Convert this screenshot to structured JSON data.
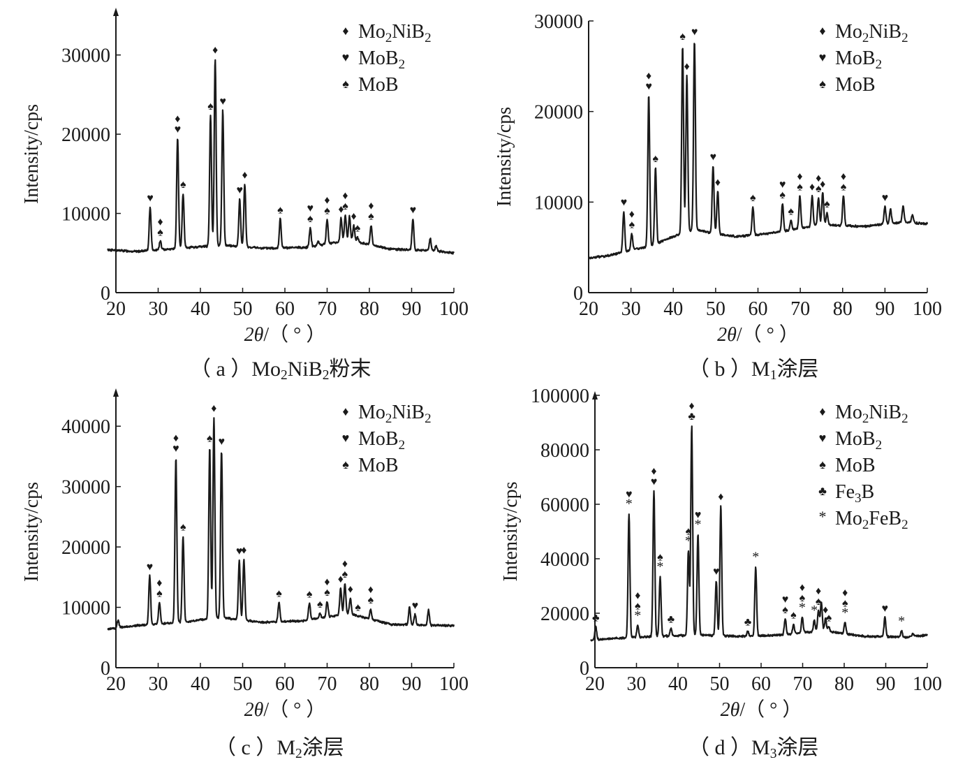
{
  "chart_data": [
    {
      "type": "line",
      "caption": {
        "prefix": "（ a ）",
        "sample": "Mo2NiB2",
        "suffix": "粉末"
      },
      "xlabel": "2θ/（ ° ）",
      "ylabel": "Intensity/cps",
      "xlim": [
        20,
        100
      ],
      "ylim": [
        0,
        35000
      ],
      "xticks": [
        20,
        30,
        40,
        50,
        60,
        70,
        80,
        90,
        100
      ],
      "yticks": [
        0,
        10000,
        20000,
        30000
      ],
      "baseline": [
        [
          18,
          5400
        ],
        [
          25,
          5200
        ],
        [
          35,
          5600
        ],
        [
          45,
          6000
        ],
        [
          55,
          5600
        ],
        [
          65,
          5700
        ],
        [
          75,
          6600
        ],
        [
          85,
          5500
        ],
        [
          95,
          5300
        ],
        [
          100,
          5000
        ]
      ],
      "peaks": [
        {
          "x": 28.1,
          "y": 10800,
          "markers": [
            "heart"
          ]
        },
        {
          "x": 30.5,
          "y": 6500,
          "markers": [
            "diamond",
            "spade"
          ]
        },
        {
          "x": 34.6,
          "y": 19500,
          "markers": [
            "diamond",
            "heart"
          ]
        },
        {
          "x": 35.9,
          "y": 12500,
          "markers": [
            "spade"
          ]
        },
        {
          "x": 42.4,
          "y": 22400,
          "markers": [
            "spade"
          ]
        },
        {
          "x": 43.5,
          "y": 29500,
          "markers": [
            "diamond"
          ]
        },
        {
          "x": 45.3,
          "y": 23000,
          "markers": [
            "heart"
          ]
        },
        {
          "x": 49.3,
          "y": 11800,
          "markers": [
            "heart"
          ]
        },
        {
          "x": 50.5,
          "y": 13700,
          "markers": [
            "diamond"
          ]
        },
        {
          "x": 58.9,
          "y": 9300,
          "markers": [
            "spade"
          ]
        },
        {
          "x": 66.0,
          "y": 8200,
          "markers": [
            "heart",
            "spade"
          ]
        },
        {
          "x": 67.9,
          "y": 6500,
          "markers": []
        },
        {
          "x": 70.0,
          "y": 9200,
          "markers": [
            "diamond",
            "spade"
          ]
        },
        {
          "x": 73.3,
          "y": 9400,
          "markers": [
            "diamond"
          ]
        },
        {
          "x": 74.3,
          "y": 9800,
          "markers": [
            "diamond",
            "spade"
          ]
        },
        {
          "x": 75.3,
          "y": 9600,
          "markers": []
        },
        {
          "x": 76.3,
          "y": 8500,
          "markers": [
            "diamond"
          ]
        },
        {
          "x": 77.2,
          "y": 7000,
          "markers": [
            "spade"
          ]
        },
        {
          "x": 80.4,
          "y": 8500,
          "markers": [
            "diamond",
            "spade"
          ]
        },
        {
          "x": 90.3,
          "y": 9300,
          "markers": [
            "heart"
          ]
        },
        {
          "x": 94.4,
          "y": 6800,
          "markers": []
        },
        {
          "x": 95.8,
          "y": 5900,
          "markers": []
        }
      ],
      "legend": [
        {
          "symbol": "diamond",
          "label": "Mo2NiB2"
        },
        {
          "symbol": "heart",
          "label": "MoB2"
        },
        {
          "symbol": "spade",
          "label": "MoB"
        }
      ],
      "legend_position": "top-right"
    },
    {
      "type": "line",
      "caption": {
        "prefix": "（ b ）",
        "sample": "M1",
        "suffix": "涂层"
      },
      "xlabel": "2θ/（ ° ）",
      "ylabel": "Intensity/cps",
      "xlim": [
        20,
        100
      ],
      "ylim": [
        0,
        30000
      ],
      "xticks": [
        20,
        30,
        40,
        50,
        60,
        70,
        80,
        90,
        100
      ],
      "yticks": [
        0,
        10000,
        20000,
        30000
      ],
      "baseline": [
        [
          20,
          3800
        ],
        [
          25,
          4100
        ],
        [
          30,
          4700
        ],
        [
          35,
          5200
        ],
        [
          40,
          6200
        ],
        [
          45,
          7000
        ],
        [
          50,
          6500
        ],
        [
          55,
          6200
        ],
        [
          60,
          6400
        ],
        [
          65,
          6700
        ],
        [
          70,
          7100
        ],
        [
          75,
          7500
        ],
        [
          80,
          7400
        ],
        [
          85,
          7300
        ],
        [
          90,
          7600
        ],
        [
          95,
          7800
        ],
        [
          100,
          7600
        ]
      ],
      "peaks": [
        {
          "x": 28.3,
          "y": 9000,
          "markers": [
            "heart"
          ]
        },
        {
          "x": 30.2,
          "y": 6500,
          "markers": [
            "diamond",
            "spade"
          ]
        },
        {
          "x": 34.2,
          "y": 21800,
          "markers": [
            "diamond",
            "heart"
          ]
        },
        {
          "x": 35.8,
          "y": 13800,
          "markers": [
            "spade"
          ]
        },
        {
          "x": 42.2,
          "y": 27300,
          "markers": [
            "spade"
          ]
        },
        {
          "x": 43.2,
          "y": 24000,
          "markers": [
            "diamond"
          ]
        },
        {
          "x": 45.0,
          "y": 27800,
          "markers": [
            "heart"
          ]
        },
        {
          "x": 49.4,
          "y": 14000,
          "markers": [
            "heart"
          ]
        },
        {
          "x": 50.5,
          "y": 11200,
          "markers": [
            "diamond"
          ]
        },
        {
          "x": 58.8,
          "y": 9500,
          "markers": [
            "spade"
          ]
        },
        {
          "x": 65.8,
          "y": 9800,
          "markers": [
            "heart",
            "spade"
          ]
        },
        {
          "x": 67.8,
          "y": 8000,
          "markers": [
            "spade"
          ]
        },
        {
          "x": 69.9,
          "y": 10700,
          "markers": [
            "diamond",
            "spade"
          ]
        },
        {
          "x": 72.8,
          "y": 10700,
          "markers": [
            "diamond"
          ]
        },
        {
          "x": 74.3,
          "y": 10500,
          "markers": [
            "diamond",
            "spade"
          ]
        },
        {
          "x": 75.3,
          "y": 11000,
          "markers": [
            "diamond"
          ]
        },
        {
          "x": 76.3,
          "y": 8800,
          "markers": [
            "spade"
          ]
        },
        {
          "x": 80.2,
          "y": 10700,
          "markers": [
            "diamond",
            "spade"
          ]
        },
        {
          "x": 90.0,
          "y": 9500,
          "markers": [
            "heart"
          ]
        },
        {
          "x": 91.3,
          "y": 9200,
          "markers": []
        },
        {
          "x": 94.3,
          "y": 9600,
          "markers": []
        },
        {
          "x": 96.5,
          "y": 8600,
          "markers": []
        }
      ],
      "legend": [
        {
          "symbol": "diamond",
          "label": "Mo2NiB2"
        },
        {
          "symbol": "heart",
          "label": "MoB2"
        },
        {
          "symbol": "spade",
          "label": "MoB"
        }
      ],
      "legend_position": "top-right"
    },
    {
      "type": "line",
      "caption": {
        "prefix": "（ c ）",
        "sample": "M2",
        "suffix": "涂层"
      },
      "xlabel": "2θ/（ ° ）",
      "ylabel": "Intensity/cps",
      "xlim": [
        20,
        100
      ],
      "ylim": [
        0,
        45000
      ],
      "xticks": [
        20,
        30,
        40,
        50,
        60,
        70,
        80,
        90,
        100
      ],
      "yticks": [
        0,
        10000,
        20000,
        30000,
        40000
      ],
      "baseline": [
        [
          18,
          6400
        ],
        [
          25,
          7000
        ],
        [
          35,
          7500
        ],
        [
          45,
          8300
        ],
        [
          55,
          7500
        ],
        [
          65,
          7800
        ],
        [
          75,
          9000
        ],
        [
          85,
          7200
        ],
        [
          95,
          7000
        ],
        [
          100,
          7000
        ]
      ],
      "peaks": [
        {
          "x": 20.5,
          "y": 7800,
          "markers": []
        },
        {
          "x": 28.0,
          "y": 15200,
          "markers": [
            "heart"
          ]
        },
        {
          "x": 30.3,
          "y": 10800,
          "markers": [
            "diamond",
            "spade"
          ]
        },
        {
          "x": 34.2,
          "y": 34800,
          "markers": [
            "diamond",
            "heart"
          ]
        },
        {
          "x": 35.9,
          "y": 21800,
          "markers": [
            "spade"
          ]
        },
        {
          "x": 42.2,
          "y": 36500,
          "markers": [
            "spade"
          ]
        },
        {
          "x": 43.2,
          "y": 41500,
          "markers": [
            "diamond"
          ]
        },
        {
          "x": 45.0,
          "y": 36000,
          "markers": [
            "heart"
          ]
        },
        {
          "x": 49.2,
          "y": 17800,
          "markers": [
            "heart"
          ]
        },
        {
          "x": 50.3,
          "y": 18000,
          "markers": [
            "diamond"
          ]
        },
        {
          "x": 58.6,
          "y": 10800,
          "markers": [
            "spade"
          ]
        },
        {
          "x": 65.8,
          "y": 10700,
          "markers": [
            "spade"
          ]
        },
        {
          "x": 68.3,
          "y": 9000,
          "markers": [
            "spade"
          ]
        },
        {
          "x": 70.0,
          "y": 11000,
          "markers": [
            "diamond",
            "spade"
          ]
        },
        {
          "x": 73.2,
          "y": 13200,
          "markers": [
            "diamond"
          ]
        },
        {
          "x": 74.2,
          "y": 14000,
          "markers": [
            "diamond",
            "spade"
          ]
        },
        {
          "x": 75.5,
          "y": 11500,
          "markers": [
            "diamond"
          ]
        },
        {
          "x": 77.3,
          "y": 8500,
          "markers": [
            "spade"
          ]
        },
        {
          "x": 80.3,
          "y": 9700,
          "markers": [
            "diamond",
            "spade"
          ]
        },
        {
          "x": 89.5,
          "y": 10000,
          "markers": []
        },
        {
          "x": 90.8,
          "y": 8800,
          "markers": [
            "heart"
          ]
        },
        {
          "x": 94.0,
          "y": 9500,
          "markers": []
        }
      ],
      "legend": [
        {
          "symbol": "diamond",
          "label": "Mo2NiB2"
        },
        {
          "symbol": "heart",
          "label": "MoB2"
        },
        {
          "symbol": "spade",
          "label": "MoB"
        }
      ],
      "legend_position": "top-right"
    },
    {
      "type": "line",
      "caption": {
        "prefix": "（ d ）",
        "sample": "M3",
        "suffix": "涂层"
      },
      "xlabel": "2θ/（ ° ）",
      "ylabel": "Intensity/cps",
      "xlim": [
        20,
        100
      ],
      "ylim": [
        0,
        100000
      ],
      "xticks": [
        20,
        30,
        40,
        50,
        60,
        70,
        80,
        90,
        100
      ],
      "yticks": [
        0,
        20000,
        40000,
        60000,
        80000,
        100000
      ],
      "baseline": [
        [
          19,
          10200
        ],
        [
          25,
          10800
        ],
        [
          35,
          11500
        ],
        [
          45,
          12000
        ],
        [
          55,
          11500
        ],
        [
          65,
          12000
        ],
        [
          75,
          13500
        ],
        [
          85,
          11500
        ],
        [
          95,
          11200
        ],
        [
          100,
          12000
        ]
      ],
      "peaks": [
        {
          "x": 20.2,
          "y": 15000,
          "markers": [
            "club"
          ]
        },
        {
          "x": 28.2,
          "y": 56500,
          "markers": [
            "heart",
            "asterisk"
          ]
        },
        {
          "x": 30.3,
          "y": 15500,
          "markers": [
            "diamond",
            "spade",
            "asterisk"
          ]
        },
        {
          "x": 34.2,
          "y": 65000,
          "markers": [
            "diamond",
            "heart"
          ]
        },
        {
          "x": 35.7,
          "y": 33500,
          "markers": [
            "spade",
            "asterisk"
          ]
        },
        {
          "x": 38.3,
          "y": 14500,
          "markers": [
            "club"
          ]
        },
        {
          "x": 42.5,
          "y": 43000,
          "markers": [
            "spade",
            "asterisk"
          ]
        },
        {
          "x": 43.3,
          "y": 89000,
          "markers": [
            "diamond",
            "club"
          ]
        },
        {
          "x": 44.8,
          "y": 49000,
          "markers": [
            "heart",
            "asterisk"
          ]
        },
        {
          "x": 49.2,
          "y": 32000,
          "markers": [
            "heart"
          ]
        },
        {
          "x": 50.3,
          "y": 59500,
          "markers": [
            "diamond"
          ]
        },
        {
          "x": 56.8,
          "y": 13500,
          "markers": [
            "club"
          ]
        },
        {
          "x": 58.7,
          "y": 37000,
          "markers": [
            "asterisk"
          ]
        },
        {
          "x": 65.8,
          "y": 18000,
          "markers": [
            "heart",
            "spade"
          ]
        },
        {
          "x": 67.8,
          "y": 16000,
          "markers": [
            "spade"
          ]
        },
        {
          "x": 69.9,
          "y": 18500,
          "markers": [
            "diamond",
            "spade",
            "asterisk"
          ]
        },
        {
          "x": 72.8,
          "y": 17500,
          "markers": [
            "asterisk"
          ]
        },
        {
          "x": 73.8,
          "y": 21000,
          "markers": [
            "diamond",
            "spade"
          ]
        },
        {
          "x": 74.5,
          "y": 24000,
          "markers": []
        },
        {
          "x": 75.5,
          "y": 18000,
          "markers": [
            "diamond"
          ]
        },
        {
          "x": 76.3,
          "y": 15000,
          "markers": [
            "spade"
          ]
        },
        {
          "x": 80.2,
          "y": 16500,
          "markers": [
            "diamond",
            "spade",
            "asterisk"
          ]
        },
        {
          "x": 89.8,
          "y": 18500,
          "markers": [
            "heart"
          ]
        },
        {
          "x": 93.8,
          "y": 13500,
          "markers": [
            "asterisk"
          ]
        },
        {
          "x": 96.5,
          "y": 12500,
          "markers": []
        }
      ],
      "legend": [
        {
          "symbol": "diamond",
          "label": "Mo2NiB2"
        },
        {
          "symbol": "heart",
          "label": "MoB2"
        },
        {
          "symbol": "spade",
          "label": "MoB"
        },
        {
          "symbol": "club",
          "label": "Fe3B"
        },
        {
          "symbol": "asterisk",
          "label": "Mo2FeB2"
        }
      ],
      "legend_position": "top-right"
    }
  ],
  "symbols": {
    "diamond": "♦",
    "heart": "♥",
    "spade": "♠",
    "club": "♣",
    "asterisk": "*"
  },
  "colors": {
    "line": "#1a1a1a",
    "text": "#1a1a1a",
    "background": "#ffffff"
  }
}
